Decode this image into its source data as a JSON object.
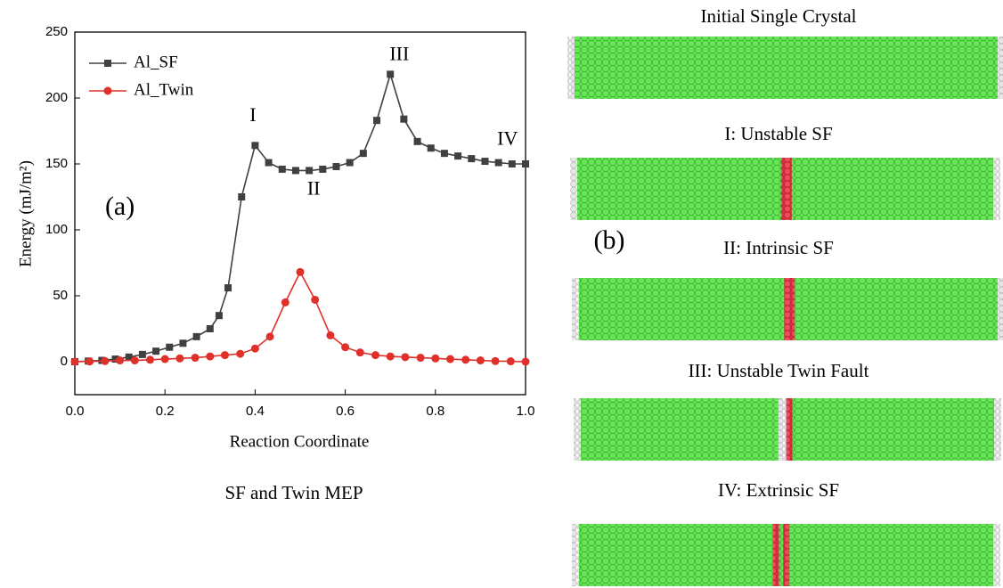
{
  "chart_data": {
    "type": "line",
    "xlabel": "Reaction Coordinate",
    "ylabel": "Energy (mJ/m²)",
    "xlim": [
      0,
      1
    ],
    "ylim": [
      -25,
      250
    ],
    "xticks": [
      {
        "value": 0,
        "label": "0.0"
      },
      0.2,
      0.4,
      0.6,
      0.8,
      {
        "value": 1,
        "label": "1.0"
      }
    ],
    "yticks": [
      0,
      50,
      100,
      150,
      200,
      250
    ],
    "legend": "upper left",
    "series": [
      {
        "name": "Al_SF",
        "color": "#404040",
        "marker": "square",
        "x": [
          0,
          0.03,
          0.06,
          0.09,
          0.12,
          0.15,
          0.18,
          0.21,
          0.24,
          0.27,
          0.3,
          0.32,
          0.34,
          0.37,
          0.4,
          0.43,
          0.46,
          0.49,
          0.52,
          0.55,
          0.58,
          0.61,
          0.64,
          0.67,
          0.7,
          0.73,
          0.76,
          0.79,
          0.82,
          0.85,
          0.88,
          0.91,
          0.94,
          0.97,
          1.0
        ],
        "values": [
          0,
          0.5,
          1,
          2,
          3.5,
          5.5,
          8,
          11,
          14,
          19,
          25,
          35,
          56,
          125,
          164,
          151,
          146,
          145,
          145,
          146,
          148,
          151,
          158,
          183,
          218,
          184,
          167,
          162,
          158,
          156,
          154,
          152,
          151,
          150,
          150
        ]
      },
      {
        "name": "Al_Twin",
        "color": "#e0302a",
        "marker": "circle",
        "x": [
          0,
          0.033,
          0.067,
          0.1,
          0.133,
          0.167,
          0.2,
          0.233,
          0.267,
          0.3,
          0.333,
          0.367,
          0.4,
          0.433,
          0.467,
          0.5,
          0.533,
          0.567,
          0.6,
          0.633,
          0.667,
          0.7,
          0.733,
          0.767,
          0.8,
          0.833,
          0.867,
          0.9,
          0.933,
          0.967,
          1.0
        ],
        "values": [
          0,
          0.2,
          0.5,
          1,
          1,
          1.5,
          2,
          2.5,
          3,
          4,
          5,
          6,
          10,
          19,
          45,
          68,
          47,
          20,
          11,
          7,
          5,
          4,
          3.5,
          3,
          2.5,
          2,
          1.5,
          1,
          0.5,
          0.3,
          0
        ]
      }
    ],
    "annotations": [
      {
        "text": "I",
        "x": 0.395,
        "y": 186
      },
      {
        "text": "II",
        "x": 0.53,
        "y": 130
      },
      {
        "text": "III",
        "x": 0.72,
        "y": 232
      },
      {
        "text": "IV",
        "x": 0.96,
        "y": 168
      },
      {
        "text": "(a)",
        "x": 0.1,
        "y": 116
      }
    ]
  },
  "caption": "SF and Twin  MEP",
  "panel_label": "(b)",
  "panels": [
    "Initial Single Crystal",
    "I:  Unstable SF",
    "II:  Intrinsic SF",
    "III:  Unstable Twin Fault",
    "IV:  Extrinsic SF"
  ]
}
